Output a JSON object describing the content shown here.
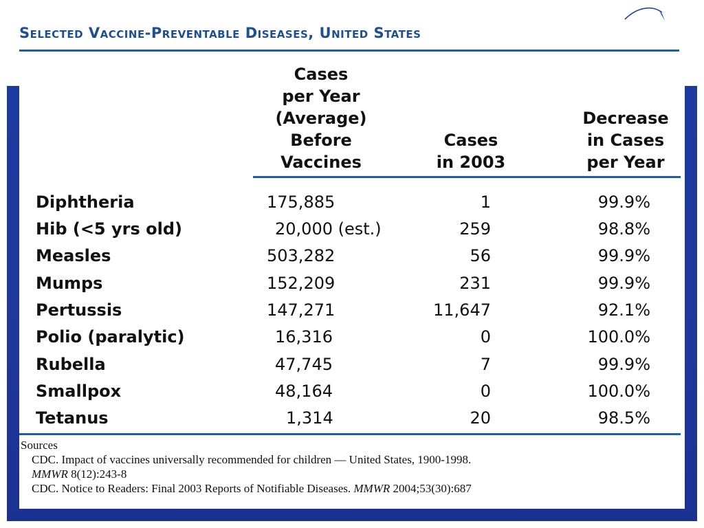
{
  "title": "Selected Vaccine-Preventable Diseases, United States",
  "columns": {
    "before": [
      "Cases",
      "per Year",
      "(Average)",
      "Before",
      "Vaccines"
    ],
    "in2003": [
      "Cases",
      "in 2003"
    ],
    "decrease": [
      "Decrease",
      "in Cases",
      "per Year"
    ]
  },
  "rows": [
    {
      "disease": "Diphtheria",
      "before": "175,885",
      "in2003": "1",
      "decrease": "99.9%"
    },
    {
      "disease": "Hib (<5 yrs old)",
      "before": "20,000 (est.)",
      "in2003": "259",
      "decrease": "98.8%"
    },
    {
      "disease": "Measles",
      "before": "503,282",
      "in2003": "56",
      "decrease": "99.9%"
    },
    {
      "disease": "Mumps",
      "before": "152,209",
      "in2003": "231",
      "decrease": "99.9%"
    },
    {
      "disease": "Pertussis",
      "before": "147,271",
      "in2003": "11,647",
      "decrease": "92.1%"
    },
    {
      "disease": "Polio (paralytic)",
      "before": "16,316",
      "in2003": "0",
      "decrease": "100.0%"
    },
    {
      "disease": "Rubella",
      "before": "47,745",
      "in2003": "7",
      "decrease": "99.9%"
    },
    {
      "disease": "Smallpox",
      "before": "48,164",
      "in2003": "0",
      "decrease": "100.0%"
    },
    {
      "disease": "Tetanus",
      "before": "1,314",
      "in2003": "20",
      "decrease": "98.5%"
    }
  ],
  "sources": {
    "heading": "Sources",
    "line1": "CDC. Impact of vaccines universally recommended for children — United States, 1900-1998.",
    "line2_italic": "MMWR",
    "line2_rest": " 8(12):243-8",
    "line3_start": "CDC. Notice to Readers: Final 2003 Reports of Notifiable Diseases. ",
    "line3_italic": "MMWR",
    "line3_rest": " 2004;53(30):687"
  },
  "colors": {
    "frame_blue": "#1d3a9e",
    "rule_blue": "#1d5fa0",
    "title_blue": "#1d4f91"
  },
  "icons": {
    "logo": "swoosh-logo-icon"
  }
}
